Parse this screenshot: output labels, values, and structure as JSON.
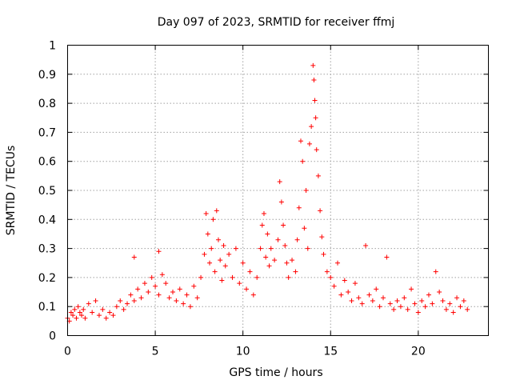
{
  "chart_data": {
    "type": "scatter",
    "title": "Day 097 of 2023, SRMTID for receiver ffmj",
    "xlabel": "GPS time / hours",
    "ylabel": "SRMTID / TECUs",
    "xlim": [
      0,
      24
    ],
    "ylim": [
      0,
      1
    ],
    "xticks": [
      0,
      5,
      10,
      15,
      20
    ],
    "xtick_labels": [
      "0",
      "5",
      "10",
      "15",
      "20"
    ],
    "yticks": [
      0,
      0.1,
      0.2,
      0.3,
      0.4,
      0.5,
      0.6,
      0.7,
      0.8,
      0.9,
      1
    ],
    "ytick_labels": [
      "0",
      "0.1",
      "0.2",
      "0.3",
      "0.4",
      "0.5",
      "0.6",
      "0.7",
      "0.8",
      "0.9",
      "1"
    ],
    "grid": true,
    "marker": "+",
    "color": "#ff0000",
    "series": [
      {
        "name": "SRMTID",
        "x": [
          0.0,
          0.1,
          0.2,
          0.3,
          0.4,
          0.5,
          0.6,
          0.7,
          0.8,
          0.9,
          1.0,
          1.2,
          1.4,
          1.6,
          1.8,
          2.0,
          2.2,
          2.4,
          2.6,
          2.8,
          3.0,
          3.2,
          3.4,
          3.6,
          3.8,
          3.8,
          4.0,
          4.2,
          4.4,
          4.6,
          4.8,
          5.0,
          5.2,
          5.2,
          5.4,
          5.6,
          5.8,
          6.0,
          6.2,
          6.4,
          6.6,
          6.8,
          7.0,
          7.2,
          7.4,
          7.6,
          7.8,
          7.9,
          8.0,
          8.1,
          8.2,
          8.3,
          8.4,
          8.5,
          8.6,
          8.7,
          8.8,
          8.9,
          9.0,
          9.2,
          9.4,
          9.6,
          9.8,
          10.0,
          10.2,
          10.4,
          10.6,
          10.8,
          11.0,
          11.1,
          11.2,
          11.3,
          11.4,
          11.5,
          11.6,
          11.8,
          12.0,
          12.1,
          12.2,
          12.3,
          12.4,
          12.5,
          12.6,
          12.8,
          13.0,
          13.1,
          13.2,
          13.3,
          13.4,
          13.5,
          13.6,
          13.7,
          13.8,
          13.9,
          14.0,
          14.05,
          14.1,
          14.15,
          14.2,
          14.3,
          14.4,
          14.5,
          14.6,
          14.8,
          15.0,
          15.2,
          15.4,
          15.6,
          15.8,
          16.0,
          16.2,
          16.4,
          16.6,
          16.8,
          17.0,
          17.2,
          17.4,
          17.6,
          17.8,
          18.0,
          18.2,
          18.4,
          18.6,
          18.8,
          19.0,
          19.2,
          19.4,
          19.6,
          19.8,
          20.0,
          20.2,
          20.4,
          20.6,
          20.8,
          21.0,
          21.2,
          21.4,
          21.6,
          21.8,
          22.0,
          22.2,
          22.4,
          22.6,
          22.8
        ],
        "y": [
          0.06,
          0.05,
          0.08,
          0.07,
          0.09,
          0.06,
          0.1,
          0.08,
          0.07,
          0.09,
          0.06,
          0.11,
          0.08,
          0.12,
          0.07,
          0.09,
          0.06,
          0.08,
          0.07,
          0.1,
          0.12,
          0.09,
          0.11,
          0.14,
          0.12,
          0.27,
          0.16,
          0.13,
          0.18,
          0.15,
          0.2,
          0.17,
          0.29,
          0.14,
          0.21,
          0.18,
          0.13,
          0.15,
          0.12,
          0.16,
          0.11,
          0.14,
          0.1,
          0.17,
          0.13,
          0.2,
          0.28,
          0.42,
          0.35,
          0.25,
          0.3,
          0.4,
          0.22,
          0.43,
          0.33,
          0.26,
          0.19,
          0.31,
          0.24,
          0.28,
          0.2,
          0.3,
          0.18,
          0.25,
          0.16,
          0.22,
          0.14,
          0.2,
          0.3,
          0.38,
          0.42,
          0.27,
          0.35,
          0.24,
          0.3,
          0.26,
          0.33,
          0.53,
          0.46,
          0.38,
          0.31,
          0.25,
          0.2,
          0.26,
          0.22,
          0.33,
          0.44,
          0.67,
          0.6,
          0.37,
          0.5,
          0.3,
          0.66,
          0.72,
          0.93,
          0.88,
          0.81,
          0.75,
          0.64,
          0.55,
          0.43,
          0.34,
          0.28,
          0.22,
          0.2,
          0.17,
          0.25,
          0.14,
          0.19,
          0.15,
          0.12,
          0.18,
          0.13,
          0.11,
          0.31,
          0.14,
          0.12,
          0.16,
          0.1,
          0.13,
          0.27,
          0.11,
          0.09,
          0.12,
          0.1,
          0.13,
          0.09,
          0.16,
          0.11,
          0.08,
          0.12,
          0.1,
          0.14,
          0.11,
          0.22,
          0.15,
          0.12,
          0.09,
          0.11,
          0.08,
          0.13,
          0.1,
          0.12,
          0.09
        ]
      }
    ]
  }
}
